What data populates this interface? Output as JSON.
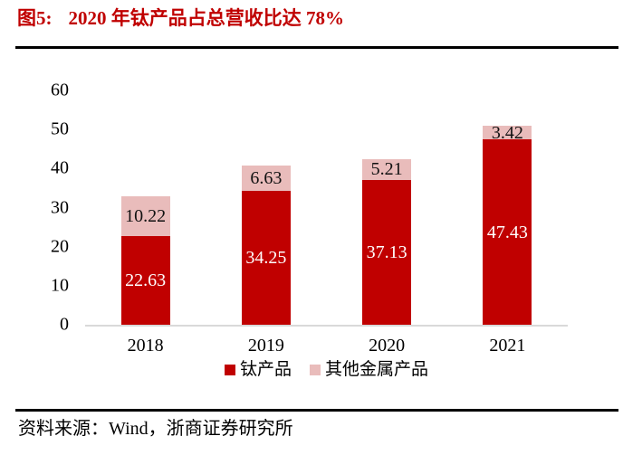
{
  "header": {
    "figure_label": "图5:",
    "title": "2020 年钛产品占总营收比达 78%"
  },
  "footer": {
    "source": "资料来源：Wind，浙商证券研究所"
  },
  "colors": {
    "title_red": "#c00000",
    "bar_primary": "#c00000",
    "bar_secondary": "#e9bcbb",
    "axis_line": "#d9d9d9",
    "rule": "#000000"
  },
  "chart_data": {
    "type": "bar",
    "stacked": true,
    "title": "图5: 2020 年钛产品占总营收比达 78%",
    "categories": [
      "2018",
      "2019",
      "2020",
      "2021"
    ],
    "series": [
      {
        "name": "钛产品",
        "color": "#c00000",
        "label_color": "#ffffff",
        "values": [
          22.63,
          34.25,
          37.13,
          47.43
        ]
      },
      {
        "name": "其他金属产品",
        "color": "#e9bcbb",
        "label_color": "#111111",
        "values": [
          10.22,
          6.63,
          5.21,
          3.42
        ]
      }
    ],
    "bar_labels": [
      [
        "22.63",
        "34.25",
        "37.13",
        "47.43"
      ],
      [
        "10.22",
        "6.63",
        "5.21",
        "3.42"
      ]
    ],
    "xlabel": "",
    "ylabel": "",
    "ylim": [
      0,
      60
    ],
    "yticks": [
      0,
      10,
      20,
      30,
      40,
      50,
      60
    ],
    "grid": false,
    "legend_position": "bottom"
  }
}
